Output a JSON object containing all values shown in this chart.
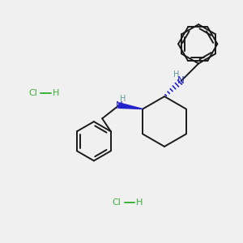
{
  "background_color": "#f0f0f0",
  "bond_color": "#1a1a1a",
  "nh_color": "#2222cc",
  "hcl_color": "#3ab03a",
  "figure_size": [
    3.0,
    3.0
  ],
  "dpi": 100,
  "xlim": [
    0,
    10
  ],
  "ylim": [
    0,
    10
  ]
}
